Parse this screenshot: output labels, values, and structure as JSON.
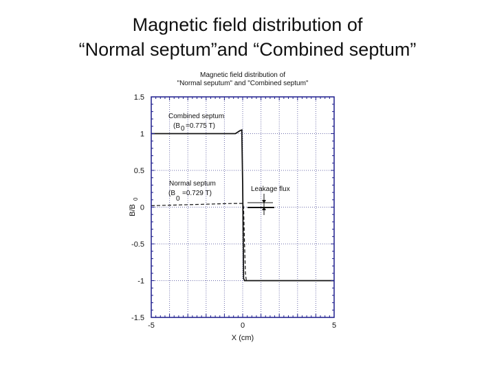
{
  "slide": {
    "title_line1": "Magnetic field distribution of",
    "title_line2": "“Normal septum”and “Combined septum”"
  },
  "chart_data": {
    "type": "line",
    "title_line1": "Magnetic field distribution of",
    "title_line2": "\"Normal seputum\" and \"Combined septum\"",
    "xlabel": "X (cm)",
    "ylabel": "B/B",
    "ylabel_sub": "0",
    "xlim": [
      -5,
      5
    ],
    "ylim": [
      -1.5,
      1.5
    ],
    "x_ticks": [
      "-5",
      "0",
      "5"
    ],
    "y_ticks": [
      "-1.5",
      "-1",
      "-0.5",
      "0",
      "0.5",
      "1",
      "1.5"
    ],
    "grid": true,
    "frame_color": "#1a1a8c",
    "series": [
      {
        "name": "Combined septum",
        "style": "solid",
        "x": [
          -5,
          -0.4,
          -0.15,
          -0.05,
          0.0,
          0.05,
          0.1,
          5
        ],
        "y": [
          1,
          1,
          1.04,
          1.05,
          0.3,
          -0.97,
          -1,
          -1
        ]
      },
      {
        "name": "Normal septum",
        "style": "dashed",
        "x": [
          -5,
          -0.5,
          0.0,
          0.05,
          0.1,
          0.15,
          0.2
        ],
        "y": [
          0.02,
          0.05,
          0.05,
          0.0,
          -0.5,
          -0.9,
          -1.0
        ]
      }
    ],
    "annotations": {
      "combined": "Combined septum",
      "combined_b0_pre": "(B",
      "combined_b0_sub": "0",
      "combined_b0_post": "=0.775 T)",
      "normal": "Normal septum",
      "normal_b0_pre": "(B",
      "normal_b0_sub": "0",
      "normal_b0_post": "=0.729 T)",
      "leakage": "Leakage flux"
    }
  }
}
